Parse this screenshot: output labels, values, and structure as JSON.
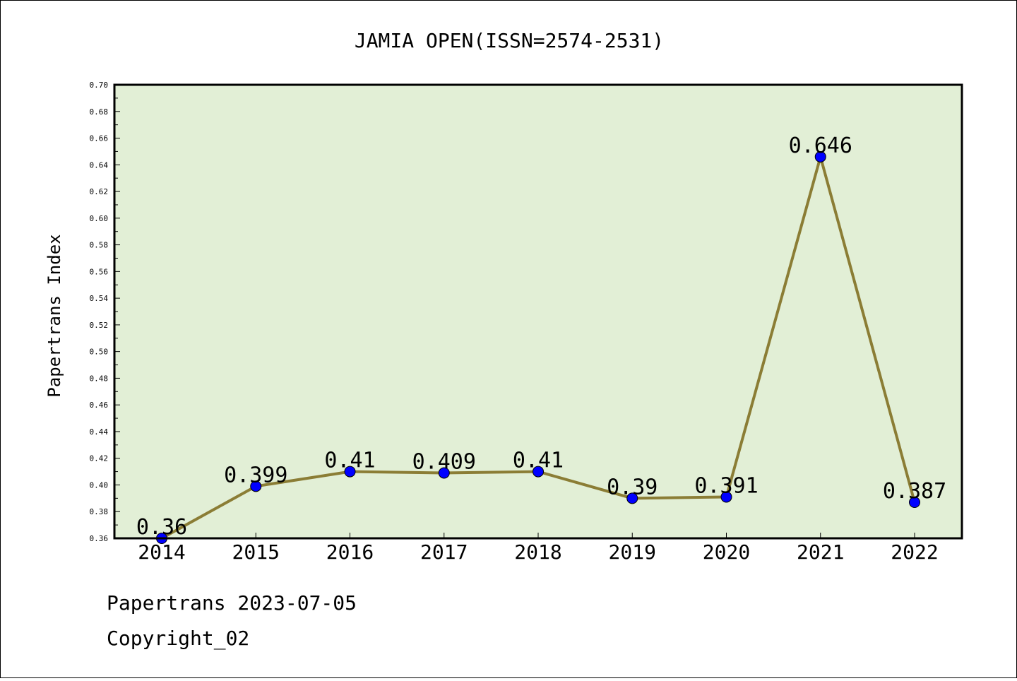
{
  "chart_data": {
    "type": "line",
    "title": "JAMIA OPEN(ISSN=2574-2531)",
    "ylabel": "Papertrans Index",
    "xlabel": "",
    "categories": [
      "2014",
      "2015",
      "2016",
      "2017",
      "2018",
      "2019",
      "2020",
      "2021",
      "2022"
    ],
    "series": [
      {
        "values": [
          0.36,
          0.399,
          0.41,
          0.409,
          0.41,
          0.39,
          0.391,
          0.646,
          0.387
        ],
        "labels": [
          "0.36",
          "0.399",
          "0.41",
          "0.409",
          "0.41",
          "0.39",
          "0.391",
          "0.646",
          "0.387"
        ]
      }
    ],
    "ylim": [
      0.36,
      0.7
    ],
    "yticks": [
      "0.36",
      "0.38",
      "0.40",
      "0.42",
      "0.44",
      "0.46",
      "0.48",
      "0.50",
      "0.52",
      "0.54",
      "0.56",
      "0.58",
      "0.60",
      "0.62",
      "0.64",
      "0.66",
      "0.68",
      "0.70"
    ],
    "grid": false,
    "colors": {
      "plot_background": "#e2efd6",
      "line": "#8b7d35",
      "marker": "#0000ff"
    }
  },
  "footer": {
    "line1": "Papertrans 2023-07-05",
    "line2": "Copyright_02"
  }
}
